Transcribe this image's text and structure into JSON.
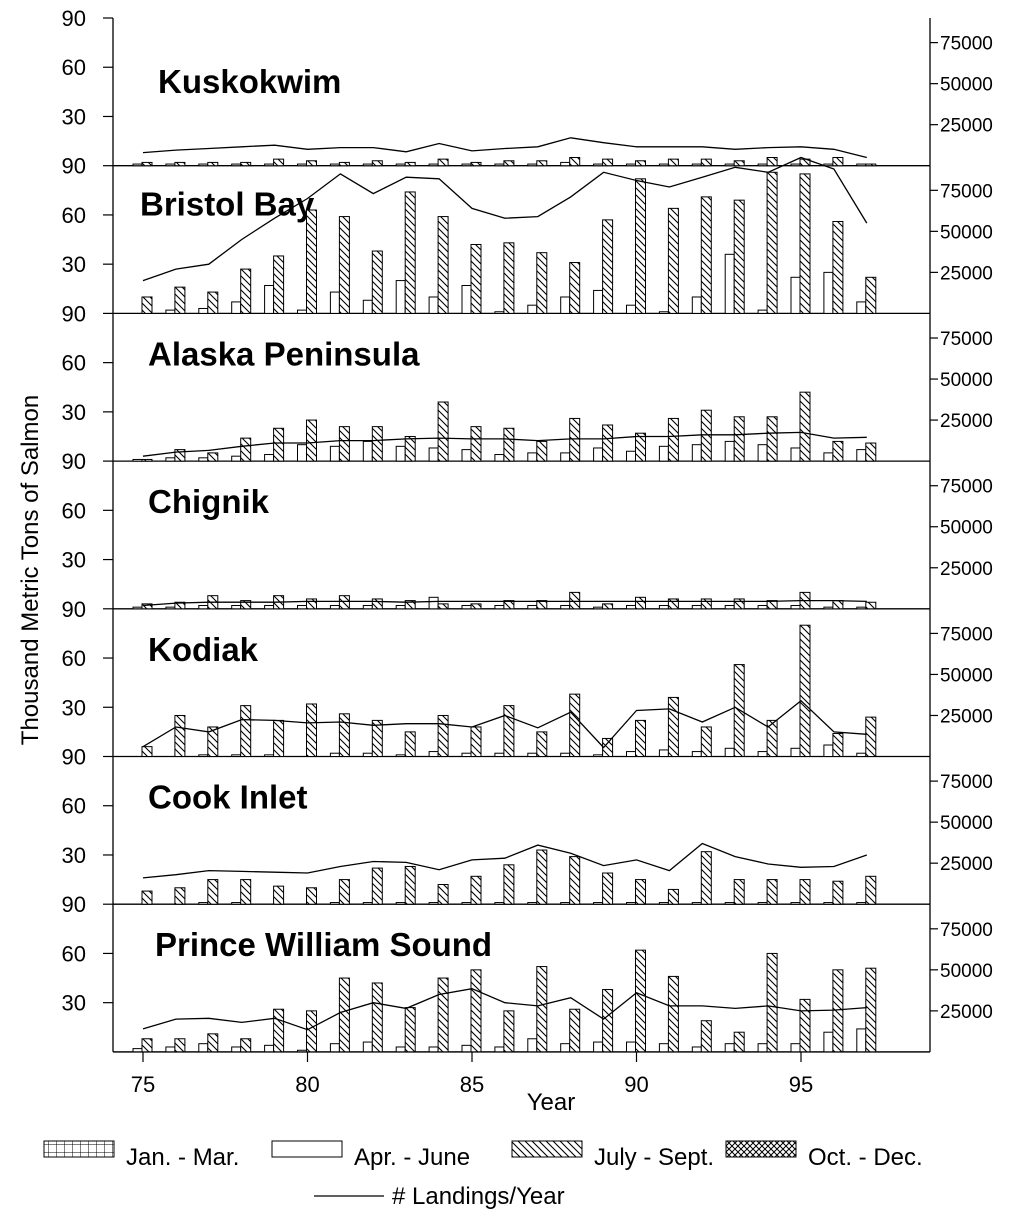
{
  "chart_data": {
    "type": "bar",
    "ylabel": "Thousand Metric Tons of Salmon",
    "xlabel": "Year",
    "x_years": [
      75,
      76,
      77,
      78,
      79,
      80,
      81,
      82,
      83,
      84,
      85,
      86,
      87,
      88,
      89,
      90,
      91,
      92,
      93,
      94,
      95,
      96,
      97
    ],
    "x_ticks": [
      75,
      80,
      85,
      90,
      95
    ],
    "x_tick_labels": [
      "75",
      "80",
      "85",
      "90",
      "95"
    ],
    "ylim": [
      0,
      90
    ],
    "y_ticks": [
      30,
      60,
      90
    ],
    "y_tick_labels": [
      "30",
      "60",
      "90"
    ],
    "y2lim": [
      0,
      90000
    ],
    "y2_ticks": [
      25000,
      50000,
      75000
    ],
    "y2_tick_labels": [
      "25000",
      "50000",
      "75000"
    ],
    "legend": {
      "jan_mar": "Jan. - Mar.",
      "apr_jun": "Apr. - June",
      "jul_sep": "July - Sept.",
      "oct_dec": "Oct. - Dec.",
      "landings": "# Landings/Year"
    },
    "panels": [
      {
        "title": "Kuskokwim",
        "series": [
          {
            "name": "Apr. - June",
            "values": [
              1,
              1,
              1,
              1,
              1,
              1,
              1,
              1,
              1,
              1,
              1,
              1,
              1,
              2,
              1,
              1,
              1,
              1,
              1,
              1,
              1,
              1,
              1
            ]
          },
          {
            "name": "July - Sept.",
            "values": [
              2,
              2,
              2,
              2,
              4,
              3,
              2,
              3,
              2,
              4,
              2,
              3,
              3,
              5,
              4,
              3,
              4,
              4,
              3,
              5,
              4,
              5,
              1
            ]
          },
          {
            "name": "# Landings/Year",
            "values": [
              8000,
              9500,
              10500,
              11500,
              12500,
              10000,
              11000,
              11000,
              8500,
              13500,
              9000,
              10500,
              11500,
              17000,
              14000,
              11500,
              11500,
              11500,
              10000,
              11000,
              11500,
              10000,
              5000
            ]
          }
        ]
      },
      {
        "title": "Bristol Bay",
        "series": [
          {
            "name": "Apr. - June",
            "values": [
              0,
              2,
              3,
              7,
              17,
              2,
              13,
              8,
              20,
              10,
              17,
              1,
              5,
              10,
              14,
              5,
              1,
              10,
              36,
              2,
              22,
              25,
              7
            ]
          },
          {
            "name": "July - Sept.",
            "values": [
              10,
              16,
              13,
              27,
              35,
              63,
              59,
              38,
              74,
              59,
              42,
              43,
              37,
              31,
              57,
              82,
              64,
              71,
              69,
              86,
              85,
              56,
              22
            ]
          },
          {
            "name": "# Landings/Year",
            "values": [
              20000,
              27000,
              30000,
              45000,
              58000,
              70000,
              85000,
              73000,
              83000,
              82000,
              64000,
              58000,
              59000,
              71000,
              86000,
              81000,
              77000,
              83000,
              89000,
              86000,
              95000,
              88000,
              55000
            ]
          }
        ]
      },
      {
        "title": "Alaska Peninsula",
        "series": [
          {
            "name": "Apr. - June",
            "values": [
              1,
              2,
              2,
              3,
              4,
              10,
              9,
              12,
              9,
              8,
              7,
              4,
              5,
              5,
              8,
              6,
              9,
              10,
              12,
              10,
              8,
              5,
              7
            ]
          },
          {
            "name": "July - Sept.",
            "values": [
              1,
              7,
              5,
              14,
              20,
              25,
              21,
              21,
              15,
              36,
              21,
              20,
              12,
              26,
              22,
              17,
              26,
              31,
              27,
              27,
              42,
              12,
              11
            ]
          },
          {
            "name": "# Landings/Year",
            "values": [
              3000,
              5500,
              6500,
              9000,
              11000,
              11000,
              12500,
              12500,
              13500,
              14000,
              13500,
              13500,
              12500,
              13500,
              13500,
              15000,
              15000,
              16000,
              16000,
              17000,
              17500,
              14000,
              14500
            ]
          }
        ]
      },
      {
        "title": "Chignik",
        "series": [
          {
            "name": "Apr. - June",
            "values": [
              1,
              1,
              2,
              2,
              2,
              2,
              2,
              2,
              2,
              7,
              2,
              2,
              2,
              2,
              1,
              2,
              2,
              2,
              2,
              2,
              2,
              1,
              1
            ]
          },
          {
            "name": "July - Sept.",
            "values": [
              3,
              4,
              8,
              5,
              8,
              6,
              8,
              6,
              5,
              3,
              3,
              5,
              5,
              10,
              3,
              7,
              6,
              6,
              6,
              5,
              10,
              5,
              4
            ]
          },
          {
            "name": "# Landings/Year",
            "values": [
              2000,
              3500,
              4000,
              4000,
              4000,
              4500,
              4500,
              4500,
              4000,
              4500,
              4500,
              4500,
              4500,
              4500,
              4500,
              4500,
              4500,
              4500,
              4500,
              4500,
              5000,
              5000,
              4500
            ]
          }
        ]
      },
      {
        "title": "Kodiak",
        "series": [
          {
            "name": "Apr. - June",
            "values": [
              0,
              0,
              1,
              1,
              1,
              0,
              2,
              2,
              1,
              3,
              2,
              2,
              2,
              2,
              1,
              3,
              4,
              3,
              5,
              3,
              5,
              7,
              2
            ]
          },
          {
            "name": "July - Sept.",
            "values": [
              6,
              25,
              18,
              31,
              22,
              32,
              26,
              22,
              15,
              25,
              18,
              31,
              15,
              38,
              11,
              22,
              36,
              18,
              56,
              22,
              80,
              14,
              24
            ]
          },
          {
            "name": "# Landings/Year",
            "values": [
              6000,
              18000,
              15000,
              22500,
              22000,
              20500,
              21000,
              19000,
              20000,
              20000,
              18000,
              25000,
              17500,
              27000,
              5500,
              28000,
              29000,
              21000,
              30000,
              18000,
              34000,
              15000,
              13500
            ]
          }
        ]
      },
      {
        "title": "Cook Inlet",
        "series": [
          {
            "name": "Apr. - June",
            "values": [
              0,
              0,
              1,
              1,
              0,
              0,
              1,
              1,
              1,
              1,
              1,
              1,
              1,
              1,
              1,
              1,
              1,
              1,
              1,
              1,
              1,
              1,
              1
            ]
          },
          {
            "name": "July - Sept.",
            "values": [
              8,
              10,
              15,
              15,
              11,
              10,
              15,
              22,
              23,
              12,
              17,
              24,
              33,
              29,
              19,
              15,
              9,
              32,
              15,
              15,
              15,
              14,
              17
            ]
          },
          {
            "name": "# Landings/Year",
            "values": [
              16000,
              18000,
              20500,
              20000,
              19500,
              19000,
              23000,
              26000,
              25500,
              21000,
              27000,
              28000,
              36000,
              31000,
              23500,
              27000,
              20500,
              37000,
              29000,
              24500,
              22500,
              23000,
              30000
            ]
          }
        ]
      },
      {
        "title": "Prince William Sound",
        "series": [
          {
            "name": "Apr. - June",
            "values": [
              2,
              3,
              5,
              3,
              4,
              1,
              5,
              6,
              3,
              3,
              4,
              3,
              8,
              5,
              6,
              6,
              5,
              3,
              5,
              5,
              5,
              12,
              14
            ]
          },
          {
            "name": "July - Sept.",
            "values": [
              8,
              8,
              11,
              8,
              26,
              25,
              45,
              42,
              27,
              45,
              50,
              25,
              52,
              26,
              38,
              62,
              46,
              19,
              12,
              60,
              32,
              50,
              51
            ]
          },
          {
            "name": "# Landings/Year",
            "values": [
              14000,
              20000,
              20500,
              18000,
              20500,
              13500,
              24000,
              30000,
              26500,
              35000,
              38500,
              30000,
              28000,
              33000,
              20000,
              36000,
              28000,
              28000,
              26500,
              28000,
              25000,
              25500,
              27000
            ]
          }
        ]
      }
    ]
  }
}
